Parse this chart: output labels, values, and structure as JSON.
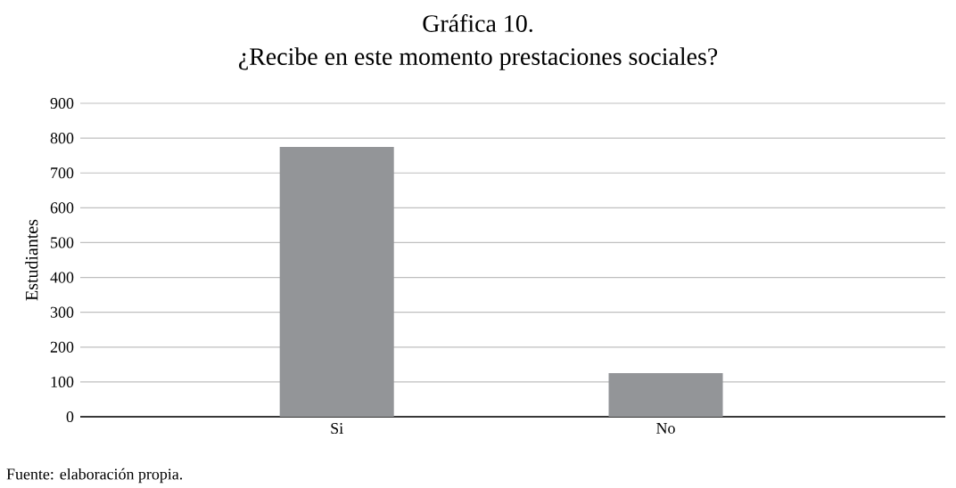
{
  "chart_data": {
    "type": "bar",
    "title": "Gráfica 10.",
    "subtitle": "¿Recibe en este momento prestaciones sociales?",
    "ylabel": "Estudiantes",
    "categories": [
      "Si",
      "No"
    ],
    "values": [
      775,
      125
    ],
    "color": "#939598",
    "ylim": [
      0,
      900
    ],
    "yticks": [
      0,
      100,
      200,
      300,
      400,
      500,
      600,
      700,
      800,
      900
    ],
    "grid": "y",
    "annotations": [
      "Fuente: elaboración propia."
    ]
  }
}
